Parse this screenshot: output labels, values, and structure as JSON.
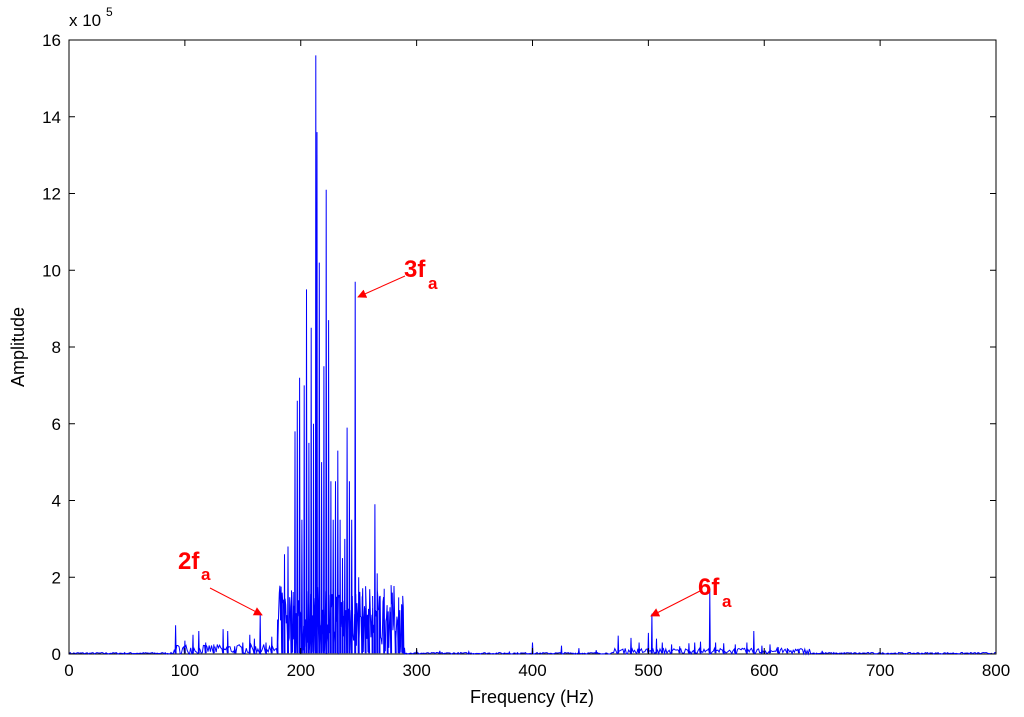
{
  "chart_data": {
    "type": "line",
    "title": "",
    "xlabel": "Frequency (Hz)",
    "ylabel": "Amplitude",
    "y_exponent_base": "x 10",
    "y_exponent_power": "5",
    "xlim": [
      0,
      800
    ],
    "ylim": [
      0,
      16
    ],
    "xticks": [
      "0",
      "100",
      "200",
      "300",
      "400",
      "500",
      "600",
      "700",
      "800"
    ],
    "yticks": [
      "0",
      "2",
      "4",
      "6",
      "8",
      "10",
      "12",
      "14",
      "16"
    ],
    "grid": false,
    "colors": {
      "line": "#0000ff",
      "annotation": "#ff0000",
      "axes": "#000000"
    },
    "series": [
      {
        "peaks": [
          [
            92,
            0.75
          ],
          [
            100,
            0.35
          ],
          [
            107,
            0.5
          ],
          [
            112,
            0.6
          ],
          [
            118,
            0.3
          ],
          [
            125,
            0.25
          ],
          [
            133,
            0.65
          ],
          [
            137,
            0.6
          ],
          [
            143,
            0.2
          ],
          [
            150,
            0.3
          ],
          [
            156,
            0.5
          ],
          [
            160,
            0.4
          ],
          [
            165,
            1.05
          ],
          [
            170,
            0.3
          ],
          [
            175,
            0.45
          ],
          [
            180,
            0.9
          ],
          [
            184,
            1.6
          ],
          [
            186,
            2.6
          ],
          [
            189,
            2.8
          ],
          [
            192,
            1.5
          ],
          [
            195,
            5.8
          ],
          [
            197,
            6.6
          ],
          [
            199,
            7.2
          ],
          [
            201,
            3.5
          ],
          [
            203,
            7.0
          ],
          [
            205,
            9.5
          ],
          [
            207,
            5.5
          ],
          [
            209,
            8.5
          ],
          [
            211,
            6.0
          ],
          [
            213,
            15.6
          ],
          [
            214,
            13.6
          ],
          [
            216,
            10.2
          ],
          [
            218,
            5.0
          ],
          [
            220,
            7.5
          ],
          [
            222,
            12.1
          ],
          [
            224,
            8.7
          ],
          [
            226,
            4.5
          ],
          [
            228,
            3.5
          ],
          [
            230,
            4.5
          ],
          [
            232,
            5.3
          ],
          [
            234,
            3.5
          ],
          [
            236,
            2.5
          ],
          [
            238,
            3.0
          ],
          [
            240,
            5.9
          ],
          [
            242,
            4.5
          ],
          [
            244,
            3.5
          ],
          [
            247,
            9.7
          ],
          [
            250,
            2.0
          ],
          [
            253,
            1.5
          ],
          [
            256,
            1.2
          ],
          [
            259,
            0.9
          ],
          [
            262,
            1.2
          ],
          [
            264,
            3.9
          ],
          [
            266,
            2.1
          ],
          [
            268,
            1.5
          ],
          [
            272,
            1.7
          ],
          [
            275,
            1.0
          ],
          [
            278,
            1.1
          ],
          [
            282,
            0.6
          ],
          [
            285,
            0.5
          ],
          [
            288,
            0.45
          ],
          [
            300,
            0.12
          ],
          [
            320,
            0.08
          ],
          [
            345,
            0.06
          ],
          [
            380,
            0.05
          ],
          [
            400,
            0.3
          ],
          [
            425,
            0.22
          ],
          [
            440,
            0.15
          ],
          [
            455,
            0.1
          ],
          [
            474,
            0.48
          ],
          [
            485,
            0.42
          ],
          [
            492,
            0.3
          ],
          [
            500,
            0.55
          ],
          [
            503,
            1.05
          ],
          [
            507,
            0.4
          ],
          [
            512,
            0.3
          ],
          [
            520,
            0.25
          ],
          [
            527,
            0.2
          ],
          [
            535,
            0.28
          ],
          [
            540,
            0.3
          ],
          [
            545,
            0.32
          ],
          [
            553,
            1.65
          ],
          [
            558,
            0.3
          ],
          [
            565,
            0.28
          ],
          [
            575,
            0.25
          ],
          [
            585,
            0.3
          ],
          [
            591,
            0.6
          ],
          [
            598,
            0.22
          ],
          [
            605,
            0.25
          ],
          [
            612,
            0.18
          ],
          [
            620,
            0.15
          ],
          [
            630,
            0.12
          ],
          [
            650,
            0.08
          ]
        ]
      }
    ],
    "annotations": [
      {
        "main": "3f",
        "sub": "a"
      },
      {
        "main": "2f",
        "sub": "a"
      },
      {
        "main": "6f",
        "sub": "a"
      }
    ]
  }
}
